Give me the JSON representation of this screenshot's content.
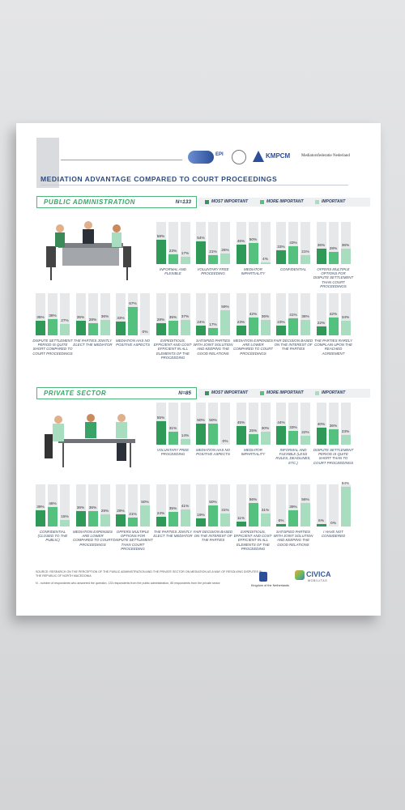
{
  "header": {
    "logos": [
      "EPI",
      "KMPCM",
      "Mediatorsfederatie Nederland"
    ],
    "title": "MEDIATION ADVANTAGE COMPARED TO COURT PROCEEDINGS"
  },
  "legend": [
    "MOST IMPORTANT",
    "MORE IMPORTANT",
    "IMPORTANT"
  ],
  "colors": [
    "#2f9a57",
    "#55c17e",
    "#a8ddc0"
  ],
  "sections": [
    {
      "title": "PUBLIC ADMINISTRATION",
      "n": "N=133",
      "items": [
        {
          "label": "Informal and flexible",
          "values": [
            58,
            23,
            17
          ],
          "value_labels": [
            "58%",
            "23%",
            "17%"
          ]
        },
        {
          "label": "Voluntary free proceeding",
          "values": [
            54,
            21,
            25
          ],
          "value_labels": [
            "54%",
            "21%",
            "25%"
          ]
        },
        {
          "label": "Mediator impartiality",
          "values": [
            46,
            50,
            4
          ],
          "value_labels": [
            "46%",
            "50%",
            "4%"
          ]
        },
        {
          "label": "Confidential",
          "values": [
            33,
            43,
            21
          ],
          "value_labels": [
            "33%",
            "43%",
            "21%"
          ]
        },
        {
          "label": "Offers multiple options for dispute settlement than court proceedings",
          "values": [
            36,
            28,
            36
          ],
          "value_labels": [
            "36%",
            "28%",
            "36%"
          ]
        },
        {
          "label": "Dispute settlement period is quite short compared to court proceedings",
          "values": [
            35,
            38,
            27
          ],
          "value_labels": [
            "35%",
            "38%",
            "27%"
          ]
        },
        {
          "label": "The parties jointly elect the mediator",
          "values": [
            35,
            28,
            36
          ],
          "value_labels": [
            "35%",
            "28%",
            "36%"
          ]
        },
        {
          "label": "Mediation has no positive aspects",
          "values": [
            33,
            67,
            0
          ],
          "value_labels": [
            "33%",
            "67%",
            "0%"
          ]
        },
        {
          "label": "Expeditious, efficient and cost-efficient in all elements of the proceeding",
          "values": [
            28,
            35,
            37
          ],
          "value_labels": [
            "28%",
            "35%",
            "37%"
          ]
        },
        {
          "label": "Satisfied parties with joint solution and keeping the good relations",
          "values": [
            24,
            17,
            59
          ],
          "value_labels": [
            "24%",
            "17%",
            "59%"
          ]
        },
        {
          "label": "Mediation expenses are lower compared to court proceedings",
          "values": [
            23,
            42,
            36
          ],
          "value_labels": [
            "23%",
            "42%",
            "36%"
          ]
        },
        {
          "label": "Fair decision based on the interest of the parties",
          "values": [
            23,
            41,
            36
          ],
          "value_labels": [
            "23%",
            "41%",
            "36%"
          ]
        },
        {
          "label": "The parties rarely complain upon the reached agreement",
          "values": [
            22,
            42,
            34
          ],
          "value_labels": [
            "22%",
            "42%",
            "34%"
          ]
        }
      ]
    },
    {
      "title": "PRIVATE SECTOR",
      "n": "N=85",
      "items": [
        {
          "label": "Voluntary free proceeding",
          "values": [
            55,
            31,
            14
          ],
          "value_labels": [
            "55%",
            "31%",
            "14%"
          ]
        },
        {
          "label": "Mediation has no positive aspects",
          "values": [
            50,
            50,
            0
          ],
          "value_labels": [
            "50%",
            "50%",
            "0%"
          ]
        },
        {
          "label": "Mediator impartiality",
          "values": [
            45,
            25,
            30
          ],
          "value_labels": [
            "45%",
            "25%",
            "30%"
          ]
        },
        {
          "label": "Informal and flexible (less rules, deadlines, etc.)",
          "values": [
            44,
            33,
            22
          ],
          "value_labels": [
            "44%",
            "33%",
            "22%"
          ]
        },
        {
          "label": "Dispute settlement period is quite short than to court proceedings",
          "values": [
            40,
            36,
            23
          ],
          "value_labels": [
            "40%",
            "36%",
            "23%"
          ]
        },
        {
          "label": "Confidential (closed to the public)",
          "values": [
            39,
            46,
            15
          ],
          "value_labels": [
            "39%",
            "46%",
            "15%"
          ]
        },
        {
          "label": "Mediation expenses are lower compared to court proceedings",
          "values": [
            36,
            36,
            29
          ],
          "value_labels": [
            "36%",
            "36%",
            "29%"
          ]
        },
        {
          "label": "Offers multiple options for dispute settlement than court proceeding",
          "values": [
            29,
            21,
            50
          ],
          "value_labels": [
            "29%",
            "21%",
            "50%"
          ]
        },
        {
          "label": "The parties jointly elect the mediator",
          "values": [
            24,
            35,
            41
          ],
          "value_labels": [
            "24%",
            "35%",
            "41%"
          ]
        },
        {
          "label": "Fair decision based on the interest of the parties",
          "values": [
            19,
            50,
            31
          ],
          "value_labels": [
            "19%",
            "50%",
            "31%"
          ]
        },
        {
          "label": "Expeditious, efficient and cost-efficient in all elements of the proceeding",
          "values": [
            11,
            56,
            31
          ],
          "value_labels": [
            "11%",
            "56%",
            "31%"
          ]
        },
        {
          "label": "Satisfied parties with joint solution and keeping the good relations",
          "values": [
            6,
            39,
            56
          ],
          "value_labels": [
            "6%",
            "39%",
            "56%"
          ]
        },
        {
          "label": "I have not considered",
          "values": [
            6,
            0,
            94
          ],
          "value_labels": [
            "6%",
            "0%",
            "94%"
          ]
        }
      ]
    }
  ],
  "footer": {
    "source": "SOURCE: RESEARCH ON THE PERCEPTION OF THE PUBLIC ADMINISTRATION AND THE PRIVATE SECTOR ON MEDIATION AS A WAY OF RESOLVING DISPUTES IN THE REPUBLIC OF NORTH MACEDONIA",
    "note": "N - number of respondents who answered the question, 133 respondents from the public administration, 85 respondents from the private sector",
    "sponsor": "Kingdom of the Netherlands",
    "partner": "CIVICA",
    "partner_sub": "MOBILITAS"
  }
}
